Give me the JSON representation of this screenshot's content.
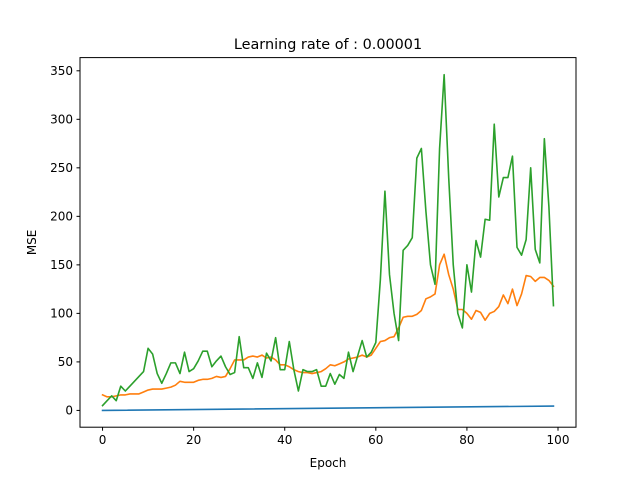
{
  "chart_data": {
    "type": "line",
    "title": "Learning rate of : 0.00001",
    "xlabel": "Epoch",
    "ylabel": "MSE",
    "xlim": [
      -4.95,
      103.95
    ],
    "ylim": [
      -17.3,
      363.6
    ],
    "xticks": [
      0,
      20,
      40,
      60,
      80,
      100
    ],
    "yticks": [
      0,
      50,
      100,
      150,
      200,
      250,
      300,
      350
    ],
    "grid": false,
    "legend": "none",
    "series": [
      {
        "color": "#1f77b4",
        "x": [
          0,
          99
        ],
        "y": [
          0,
          4.5
        ]
      },
      {
        "color": "#ff7f0e",
        "x": [
          0,
          1,
          2,
          3,
          4,
          5,
          6,
          7,
          8,
          9,
          10,
          11,
          12,
          13,
          14,
          15,
          16,
          17,
          18,
          19,
          20,
          21,
          22,
          23,
          24,
          25,
          26,
          27,
          28,
          29,
          30,
          31,
          32,
          33,
          34,
          35,
          36,
          37,
          38,
          39,
          40,
          41,
          42,
          43,
          44,
          45,
          46,
          47,
          48,
          49,
          50,
          51,
          52,
          53,
          54,
          55,
          56,
          57,
          58,
          59,
          60,
          61,
          62,
          63,
          64,
          65,
          66,
          67,
          68,
          69,
          70,
          71,
          72,
          73,
          74,
          75,
          76,
          77,
          78,
          79,
          80,
          81,
          82,
          83,
          84,
          85,
          86,
          87,
          88,
          89,
          90,
          91,
          92,
          93,
          94,
          95,
          96,
          97,
          98,
          99
        ],
        "y": [
          16,
          14,
          14,
          15,
          16,
          16,
          17,
          17,
          17,
          19,
          21,
          22,
          22,
          22,
          23,
          24,
          26,
          30,
          29,
          29,
          29,
          31,
          32,
          32,
          33,
          35,
          34,
          35,
          43,
          52,
          52,
          52,
          55,
          56,
          55,
          57,
          54,
          55,
          52,
          47,
          47,
          45,
          42,
          40,
          39,
          39,
          38,
          39,
          40,
          43,
          47,
          46,
          48,
          50,
          53,
          54,
          55,
          57,
          55,
          57,
          64,
          71,
          72,
          75,
          76,
          85,
          96,
          97,
          97,
          99,
          103,
          115,
          117,
          120,
          150,
          161,
          140,
          125,
          104,
          104,
          100,
          94,
          103,
          101,
          93,
          100,
          102,
          107,
          119,
          110,
          125,
          108,
          120,
          139,
          138,
          133,
          137,
          137,
          134,
          128
        ]
      },
      {
        "color": "#2ca02c",
        "x": [
          0,
          1,
          2,
          3,
          4,
          5,
          6,
          7,
          8,
          9,
          10,
          11,
          12,
          13,
          14,
          15,
          16,
          17,
          18,
          19,
          20,
          21,
          22,
          23,
          24,
          25,
          26,
          27,
          28,
          29,
          30,
          31,
          32,
          33,
          34,
          35,
          36,
          37,
          38,
          39,
          40,
          41,
          42,
          43,
          44,
          45,
          46,
          47,
          48,
          49,
          50,
          51,
          52,
          53,
          54,
          55,
          56,
          57,
          58,
          59,
          60,
          61,
          62,
          63,
          64,
          65,
          66,
          67,
          68,
          69,
          70,
          71,
          72,
          73,
          74,
          75,
          76,
          77,
          78,
          79,
          80,
          81,
          82,
          83,
          84,
          85,
          86,
          87,
          88,
          89,
          90,
          91,
          92,
          93,
          94,
          95,
          96,
          97,
          98,
          99
        ],
        "y": [
          5,
          10,
          15,
          10,
          25,
          20,
          25,
          30,
          35,
          40,
          64,
          58,
          38,
          28,
          38,
          49,
          49,
          38,
          60,
          40,
          43,
          51,
          61,
          61,
          45,
          51,
          56,
          45,
          37,
          39,
          76,
          44,
          44,
          33,
          49,
          34,
          59,
          51,
          75,
          42,
          42,
          71,
          42,
          20,
          42,
          40,
          40,
          42,
          25,
          25,
          38,
          27,
          37,
          33,
          60,
          40,
          56,
          72,
          55,
          60,
          70,
          135,
          226,
          140,
          100,
          72,
          165,
          170,
          178,
          260,
          270,
          205,
          150,
          130,
          270,
          346,
          240,
          150,
          100,
          85,
          150,
          122,
          175,
          158,
          197,
          196,
          295,
          220,
          240,
          240,
          262,
          168,
          160,
          176,
          250,
          166,
          152,
          280,
          210,
          108
        ]
      }
    ]
  }
}
